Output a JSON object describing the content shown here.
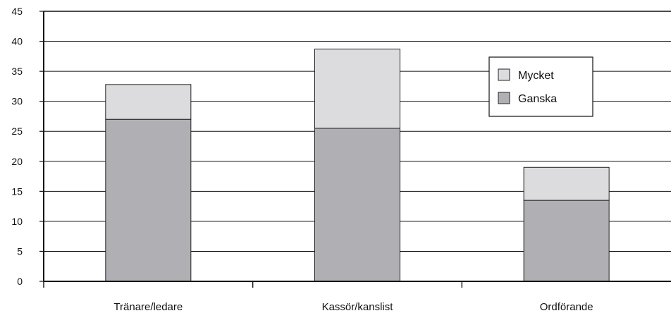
{
  "chart_data": {
    "type": "bar",
    "stacked": true,
    "title": "",
    "xlabel": "",
    "ylabel": "",
    "categories": [
      "Tränare/ledare",
      "Kassör/kanslist",
      "Ordförande"
    ],
    "series": [
      {
        "name": "Ganska",
        "values": [
          27,
          25.5,
          13.5
        ],
        "color": "#b0b0b4"
      },
      {
        "name": "Mycket",
        "values": [
          5.8,
          13.2,
          5.5
        ],
        "color": "#dcdcde"
      }
    ],
    "ylim": [
      0,
      45
    ],
    "yticks": [
      0,
      5,
      10,
      15,
      20,
      25,
      30,
      35,
      40,
      45
    ],
    "grid": true,
    "legend": {
      "position": "top-right",
      "order": [
        "Mycket",
        "Ganska"
      ]
    }
  }
}
